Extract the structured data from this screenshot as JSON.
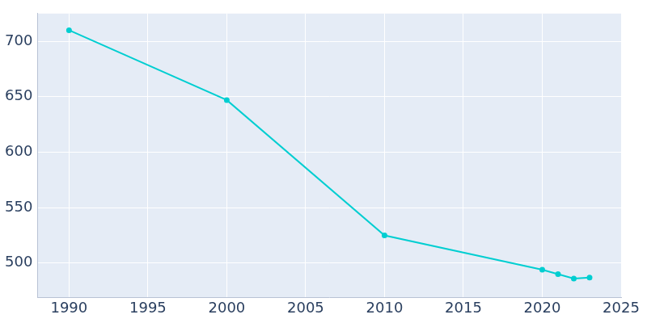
{
  "chart_data": {
    "type": "line",
    "x": [
      1990,
      2000,
      2010,
      2020,
      2021,
      2022,
      2023
    ],
    "values": [
      710,
      647,
      525,
      494,
      490,
      486,
      487
    ],
    "color": "#00CED1",
    "marker": "circle",
    "xlim": [
      1988,
      2025
    ],
    "xticks": [
      1990,
      1995,
      2000,
      2005,
      2010,
      2015,
      2020,
      2025
    ],
    "ylim": [
      469,
      725
    ],
    "yticks": [
      500,
      550,
      600,
      650,
      700
    ],
    "grid": true
  }
}
